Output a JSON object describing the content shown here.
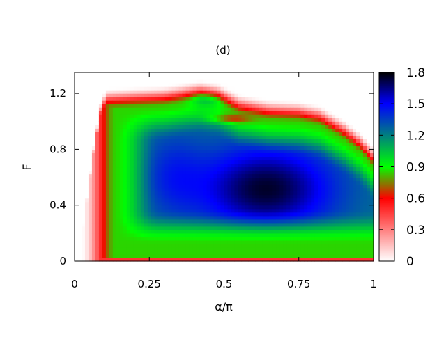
{
  "chart_data": {
    "type": "heatmap",
    "title": "(d)",
    "xlabel": "α/π",
    "ylabel": "F",
    "xlim": [
      0,
      1
    ],
    "ylim": [
      0,
      1.35
    ],
    "x_ticks": [
      {
        "value": 0,
        "label": "0"
      },
      {
        "value": 0.25,
        "label": "0.25"
      },
      {
        "value": 0.5,
        "label": "0.5"
      },
      {
        "value": 0.75,
        "label": "0.75"
      },
      {
        "value": 1,
        "label": "1"
      }
    ],
    "y_ticks": [
      {
        "value": 0,
        "label": "0"
      },
      {
        "value": 0.4,
        "label": "0.4"
      },
      {
        "value": 0.8,
        "label": "0.8"
      },
      {
        "value": 1.2,
        "label": "1.2"
      }
    ],
    "colorbar": {
      "range": [
        0,
        1.8
      ],
      "ticks": [
        {
          "value": 0,
          "label": "0"
        },
        {
          "value": 0.3,
          "label": "0.3"
        },
        {
          "value": 0.6,
          "label": "0.6"
        },
        {
          "value": 0.9,
          "label": "0.9"
        },
        {
          "value": 1.2,
          "label": "1.2"
        },
        {
          "value": 1.5,
          "label": "1.5"
        },
        {
          "value": 1.8,
          "label": "1.8"
        }
      ],
      "stops": [
        {
          "value": 0.0,
          "color": "#ffffff"
        },
        {
          "value": 0.6,
          "color": "#ff0000"
        },
        {
          "value": 0.9,
          "color": "#00ff00"
        },
        {
          "value": 1.5,
          "color": "#0000ff"
        },
        {
          "value": 1.8,
          "color": "#000000"
        }
      ]
    },
    "grid": false,
    "legend": "colorbar-right"
  }
}
